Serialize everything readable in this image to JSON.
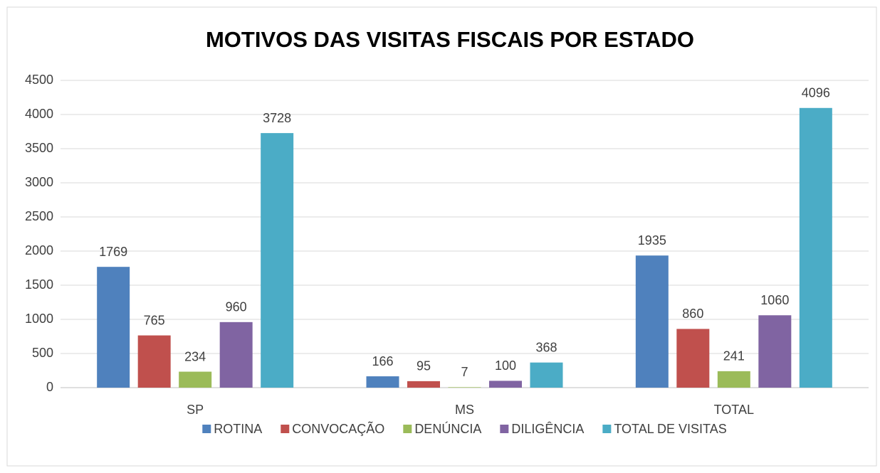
{
  "chart_data": {
    "type": "bar",
    "title": "MOTIVOS DAS VISITAS FISCAIS POR ESTADO",
    "categories": [
      "SP",
      "MS",
      "TOTAL"
    ],
    "series": [
      {
        "name": "ROTINA",
        "color": "#4f81bd",
        "values": [
          1769,
          166,
          1935
        ]
      },
      {
        "name": "CONVOCAÇÃO",
        "color": "#c0504d",
        "values": [
          765,
          95,
          860
        ]
      },
      {
        "name": "DENÚNCIA",
        "color": "#9bbb59",
        "values": [
          234,
          7,
          241
        ]
      },
      {
        "name": "DILIGÊNCIA",
        "color": "#8064a2",
        "values": [
          960,
          100,
          1060
        ]
      },
      {
        "name": "TOTAL DE VISITAS",
        "color": "#4bacc6",
        "values": [
          3728,
          368,
          4096
        ]
      }
    ],
    "ylim": [
      0,
      4500
    ],
    "yticks": [
      0,
      500,
      1000,
      1500,
      2000,
      2500,
      3000,
      3500,
      4000,
      4500
    ],
    "grid": true,
    "legend": "bottom",
    "data_labels": true
  }
}
